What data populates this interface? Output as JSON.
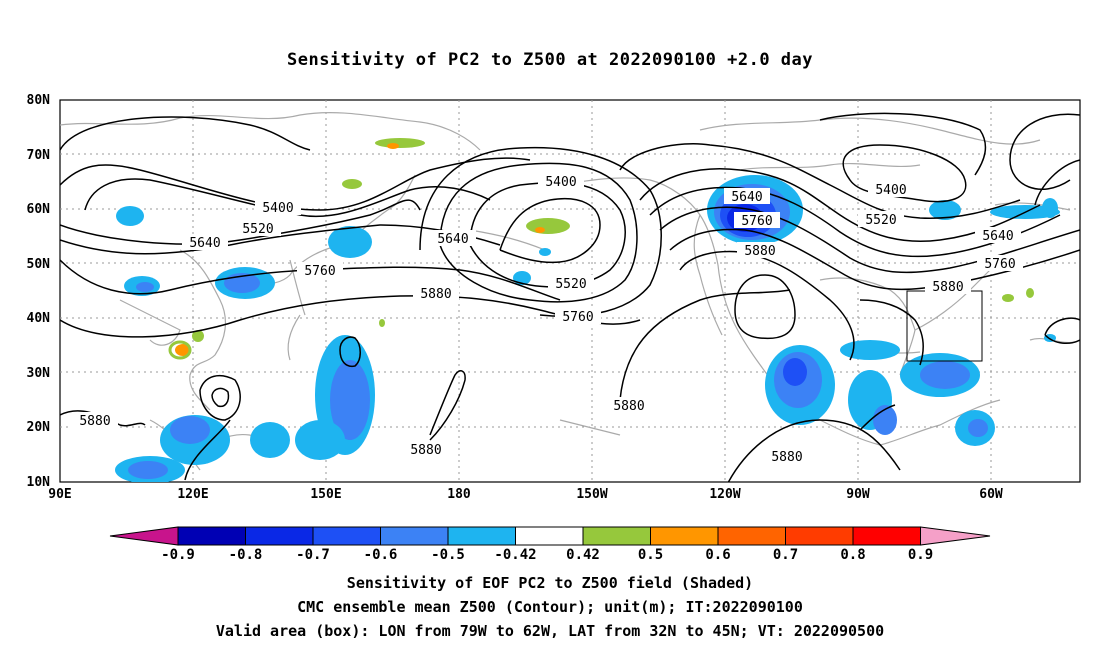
{
  "title": "Sensitivity of PC2 to Z500 at 2022090100 +2.0 day",
  "lat_labels": [
    "80N",
    "70N",
    "60N",
    "50N",
    "40N",
    "30N",
    "20N",
    "10N"
  ],
  "lon_labels": [
    "90E",
    "120E",
    "150E",
    "180",
    "150W",
    "120W",
    "90W",
    "60W"
  ],
  "contour_labels": [
    {
      "text": "5400",
      "name": "contour-label-5400-west"
    },
    {
      "text": "5520",
      "name": "contour-label-5520-west"
    },
    {
      "text": "5640",
      "name": "contour-label-5640-west"
    },
    {
      "text": "5760",
      "name": "contour-label-5760-west"
    },
    {
      "text": "5880",
      "name": "contour-label-5880-central"
    },
    {
      "text": "5400",
      "name": "contour-label-5400-pacific"
    },
    {
      "text": "5640",
      "name": "contour-label-5640-pacific"
    },
    {
      "text": "5520",
      "name": "contour-label-5520-pacific"
    },
    {
      "text": "5760",
      "name": "contour-label-5760-pacific"
    },
    {
      "text": "5640",
      "name": "contour-label-5640-rockies"
    },
    {
      "text": "5760",
      "name": "contour-label-5760-rockies"
    },
    {
      "text": "5880",
      "name": "contour-label-5880-rockies"
    },
    {
      "text": "5400",
      "name": "contour-label-5400-canada"
    },
    {
      "text": "5520",
      "name": "contour-label-5520-canada"
    },
    {
      "text": "5640",
      "name": "contour-label-5640-atlantic"
    },
    {
      "text": "5760",
      "name": "contour-label-5760-atlantic"
    },
    {
      "text": "5880",
      "name": "contour-label-5880-atlantic"
    },
    {
      "text": "5880",
      "name": "contour-label-5880-westpac"
    },
    {
      "text": "5880",
      "name": "contour-label-5880-hawaii"
    },
    {
      "text": "5880",
      "name": "contour-label-5880-eastpac"
    },
    {
      "text": "5880",
      "name": "contour-label-5880-mexico"
    }
  ],
  "colorbar": {
    "labels": [
      "-0.9",
      "-0.8",
      "-0.7",
      "-0.6",
      "-0.5",
      "-0.42",
      "0.42",
      "0.5",
      "0.6",
      "0.7",
      "0.8",
      "0.9"
    ],
    "colors": [
      "#0000b4",
      "#0a28e6",
      "#1e50f5",
      "#3c82f5",
      "#1eb4f0",
      "#ffffff",
      "#96c83c",
      "#ff9600",
      "#ff6400",
      "#ff3c00",
      "#ff0000"
    ],
    "low_end_color": "#c8148c",
    "high_end_color": "#f5a0c8"
  },
  "captions": [
    "Sensitivity of EOF PC2 to Z500 field (Shaded)",
    "CMC ensemble mean Z500 (Contour); unit(m); IT:2022090100",
    "Valid area (box): LON from 79W to 62W, LAT from 32N to 45N; VT: 2022090500"
  ]
}
